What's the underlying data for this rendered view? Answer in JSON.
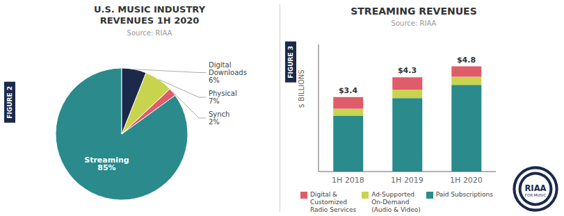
{
  "chart_data": [
    {
      "type": "pie",
      "title": "U.S. MUSIC INDUSTRY\nREVENUES 1H 2020",
      "subtitle": "Source: RIAA",
      "categories": [
        "Streaming",
        "Synch",
        "Physical",
        "Digital\nDownloads"
      ],
      "values": [
        85,
        2,
        7,
        6
      ],
      "value_labels": [
        "85%",
        "2%",
        "7%",
        "6%"
      ],
      "colors": [
        "#2a8a8c",
        "#e05c6a",
        "#c8d44e",
        "#1b2a4a"
      ],
      "data_labels": true,
      "annotations": [
        "FIGURE 2"
      ]
    },
    {
      "type": "bar",
      "title": "STREAMING REVENUES",
      "subtitle": "Source: RIAA",
      "stacked": true,
      "categories": [
        "1H 2018",
        "1H 2019",
        "1H 2020"
      ],
      "series": [
        {
          "name": "Paid Subscriptions",
          "color": "#2a8a8c",
          "values": [
            2.55,
            3.35,
            3.95
          ]
        },
        {
          "name": "Ad-Supported\nOn-Demand\n(Audio & Video)",
          "color": "#c8d44e",
          "values": [
            0.32,
            0.38,
            0.38
          ]
        },
        {
          "name": "Digital &\nCustomized\nRadio Services",
          "color": "#e05c6a",
          "values": [
            0.53,
            0.57,
            0.47
          ]
        }
      ],
      "totals": [
        3.4,
        4.3,
        4.8
      ],
      "total_labels": [
        "$3.4",
        "$4.3",
        "$4.8"
      ],
      "ylabel": "$ BILLIONS",
      "ylim": [
        0,
        5.8
      ],
      "tick_labels": "x",
      "legend": "bottom",
      "grid": false,
      "annotations": [
        "FIGURE 3",
        "RIAA",
        "FOR MUSIC"
      ]
    }
  ]
}
